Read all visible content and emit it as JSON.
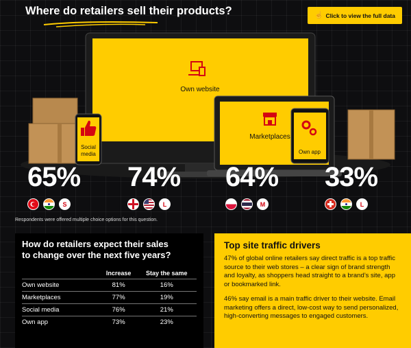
{
  "title": "Where do retailers sell their products?",
  "cta": {
    "label": "Click to view the full data"
  },
  "channels": [
    {
      "label": "Social\nmedia",
      "percent": "65%",
      "badge": "S"
    },
    {
      "label": "Own website",
      "percent": "74%",
      "badge": "L"
    },
    {
      "label": "Marketplaces",
      "percent": "64%",
      "badge": "M"
    },
    {
      "label": "Own app",
      "percent": "33%",
      "badge": "L"
    }
  ],
  "flags": {
    "c1": [
      "turkey-flag",
      "india-flag"
    ],
    "c2": [
      "england-flag",
      "usa-flag"
    ],
    "c3": [
      "poland-flag",
      "thailand-flag"
    ],
    "c4": [
      "switzerland-flag",
      "india-flag"
    ]
  },
  "footnote": "Respondents were offered multiple choice options for this question.",
  "sales": {
    "title_line1": "How do retailers expect their sales",
    "title_line2": "to change over the next five years?",
    "headers": [
      "",
      "Increase",
      "Stay the same"
    ],
    "rows": [
      [
        "Own website",
        "81%",
        "16%"
      ],
      [
        "Marketplaces",
        "77%",
        "19%"
      ],
      [
        "Social media",
        "76%",
        "21%"
      ],
      [
        "Own app",
        "73%",
        "23%"
      ]
    ]
  },
  "traffic": {
    "title": "Top site traffic drivers",
    "p1": "47% of global online retailers say direct traffic is a top traffic source to their web stores – a clear sign of brand strength and loyalty, as shoppers head straight to a brand’s site, app or bookmarked link.",
    "p2": "46% say email is a main traffic driver to their website. Email marketing offers a direct, low-cost way to send personalized, high-converting messages to engaged customers."
  },
  "colors": {
    "accent": "#ffcc00",
    "brand_red": "#d40511",
    "background": "#0e0e10"
  }
}
